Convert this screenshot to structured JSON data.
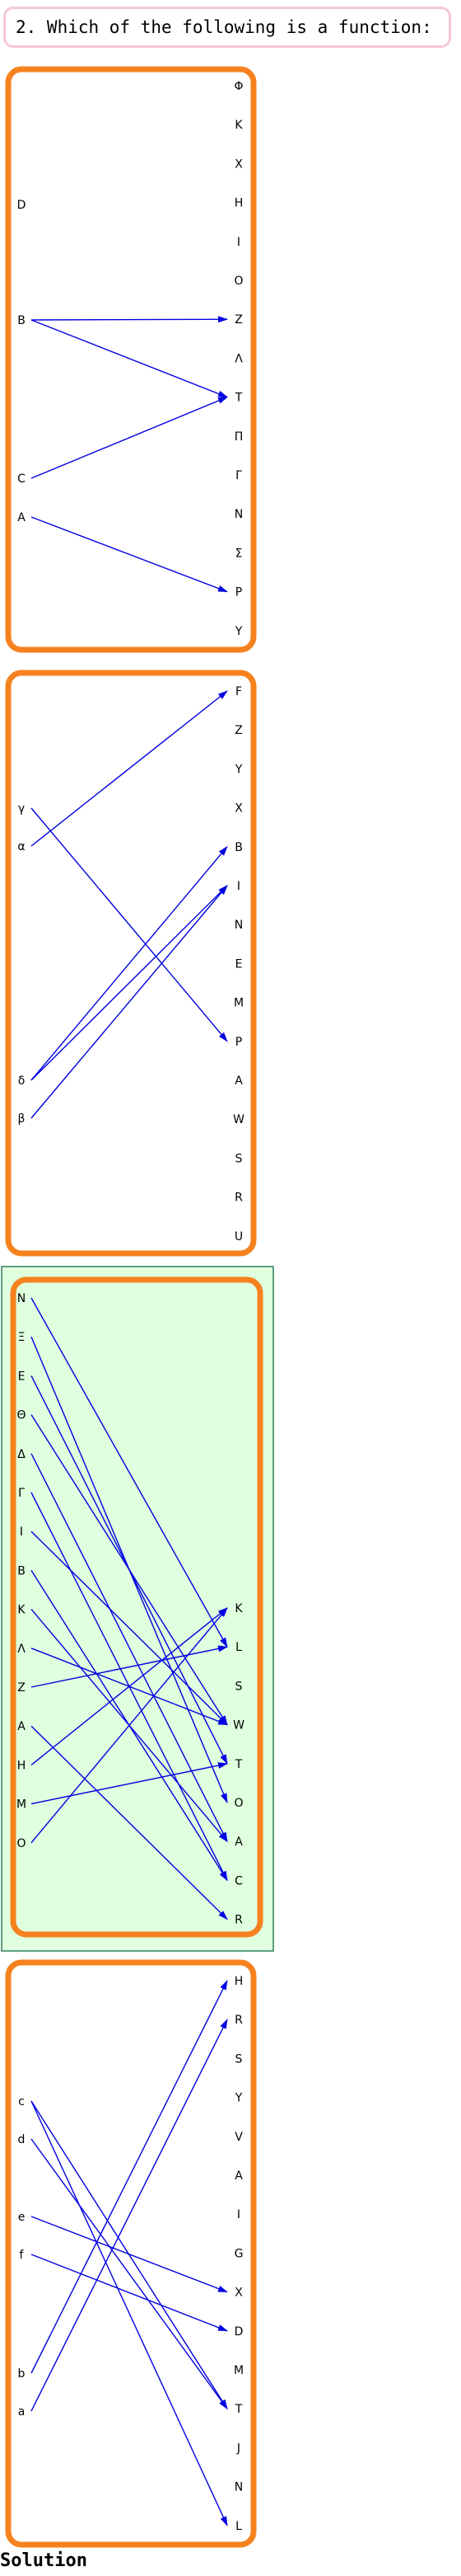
{
  "question": {
    "text": "2. Which of the following is a function:"
  },
  "solution_label": "Solution",
  "selected_option": 3,
  "options": [
    {
      "domain": [
        "D",
        "B",
        "C",
        "A"
      ],
      "codomain": [
        "Φ",
        "K",
        "X",
        "H",
        "I",
        "O",
        "Z",
        "Λ",
        "T",
        "Π",
        "Γ",
        "N",
        "Σ",
        "P",
        "Y"
      ],
      "mapping": [
        [
          "B",
          "Z"
        ],
        [
          "B",
          "T"
        ],
        [
          "C",
          "T"
        ],
        [
          "A",
          "P"
        ]
      ]
    },
    {
      "domain": [
        "γ",
        "α",
        "δ",
        "β"
      ],
      "codomain": [
        "F",
        "Z",
        "Y",
        "X",
        "B",
        "I",
        "N",
        "E",
        "M",
        "P",
        "A",
        "W",
        "S",
        "R",
        "U"
      ],
      "mapping": [
        [
          "γ",
          "P"
        ],
        [
          "α",
          "F"
        ],
        [
          "δ",
          "B"
        ],
        [
          "δ",
          "I"
        ],
        [
          "β",
          "I"
        ]
      ]
    },
    {
      "domain": [
        "N",
        "Ξ",
        "E",
        "Θ",
        "Δ",
        "Γ",
        "I",
        "B",
        "K",
        "Λ",
        "Z",
        "A",
        "H",
        "M",
        "O"
      ],
      "codomain": [
        "K",
        "L",
        "S",
        "W",
        "T",
        "O",
        "A",
        "C",
        "R"
      ],
      "mapping": [
        [
          "N",
          "L"
        ],
        [
          "Ξ",
          "O"
        ],
        [
          "E",
          "T"
        ],
        [
          "Θ",
          "W"
        ],
        [
          "Δ",
          "A"
        ],
        [
          "Γ",
          "C"
        ],
        [
          "I",
          "W"
        ],
        [
          "B",
          "C"
        ],
        [
          "K",
          "A"
        ],
        [
          "Λ",
          "W"
        ],
        [
          "Z",
          "L"
        ],
        [
          "A",
          "R"
        ],
        [
          "H",
          "K"
        ],
        [
          "M",
          "T"
        ],
        [
          "O",
          "K"
        ]
      ]
    },
    {
      "domain": [
        "c",
        "d",
        "e",
        "f",
        "b",
        "a"
      ],
      "codomain": [
        "H",
        "R",
        "S",
        "Y",
        "V",
        "A",
        "I",
        "G",
        "X",
        "D",
        "M",
        "T",
        "J",
        "N",
        "L"
      ],
      "mapping": [
        [
          "c",
          "T"
        ],
        [
          "c",
          "L"
        ],
        [
          "d",
          "T"
        ],
        [
          "e",
          "X"
        ],
        [
          "f",
          "D"
        ],
        [
          "b",
          "H"
        ],
        [
          "a",
          "R"
        ]
      ]
    }
  ]
}
